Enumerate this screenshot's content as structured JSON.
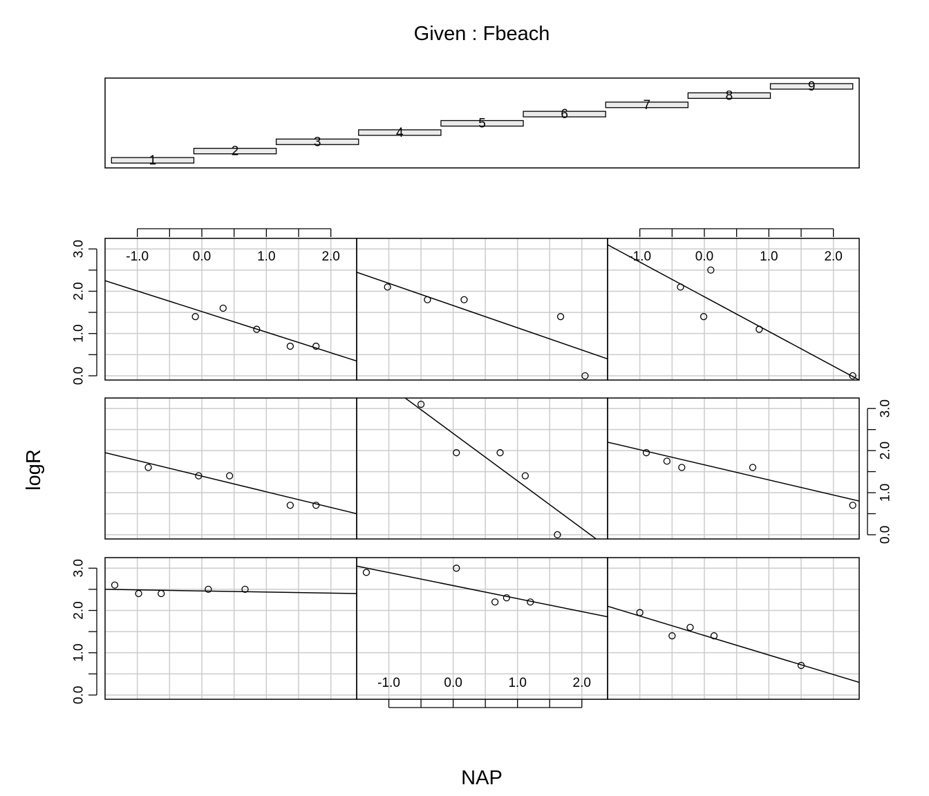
{
  "chart_data": {
    "type": "scatter",
    "title": "Given : Fbeach",
    "xlabel": "NAP",
    "ylabel": "logR",
    "xlim": [
      -1.5,
      2.4
    ],
    "ylim": [
      -0.1,
      3.25
    ],
    "x_ticks": [
      -1.0,
      -0.5,
      0.0,
      0.5,
      1.0,
      1.5,
      2.0
    ],
    "x_tick_labels": [
      "-1.0",
      "0.0",
      "1.0",
      "2.0"
    ],
    "x_tick_label_values": [
      -1.0,
      0.0,
      1.0,
      2.0
    ],
    "y_ticks": [
      0.0,
      0.5,
      1.0,
      1.5,
      2.0,
      2.5,
      3.0
    ],
    "y_tick_labels": [
      "0.0",
      "1.0",
      "2.0",
      "3.0"
    ],
    "y_tick_label_values": [
      0.0,
      1.0,
      2.0,
      3.0
    ],
    "grid": true,
    "given": {
      "variable": "Fbeach",
      "intervals": [
        {
          "label": "1",
          "range": [
            -1.45,
            -0.17
          ]
        },
        {
          "label": "2",
          "range": [
            -0.17,
            1.11
          ]
        },
        {
          "label": "3",
          "range": [
            1.11,
            2.39
          ]
        },
        {
          "label": "4",
          "range": [
            2.39,
            3.67
          ]
        },
        {
          "label": "5",
          "range": [
            3.67,
            4.95
          ]
        },
        {
          "label": "6",
          "range": [
            4.95,
            6.23
          ]
        },
        {
          "label": "7",
          "range": [
            6.23,
            7.51
          ]
        },
        {
          "label": "8",
          "range": [
            7.51,
            8.79
          ]
        },
        {
          "label": "9",
          "range": [
            8.79,
            10.07
          ]
        }
      ],
      "xlim": [
        -1.55,
        10.17
      ]
    },
    "panels": [
      {
        "given": "1",
        "points": [
          [
            -0.1,
            1.4
          ],
          [
            0.33,
            1.6
          ],
          [
            0.85,
            1.1
          ],
          [
            1.37,
            0.7
          ],
          [
            1.77,
            0.7
          ]
        ],
        "fit": [
          [
            -1.5,
            2.25
          ],
          [
            2.4,
            0.35
          ]
        ]
      },
      {
        "given": "2",
        "points": [
          [
            -1.02,
            2.1
          ],
          [
            -0.4,
            1.8
          ],
          [
            0.17,
            1.8
          ],
          [
            1.67,
            1.4
          ],
          [
            2.05,
            0.0
          ]
        ],
        "fit": [
          [
            -1.5,
            2.45
          ],
          [
            2.4,
            0.4
          ]
        ]
      },
      {
        "given": "3",
        "points": [
          [
            -0.37,
            2.1
          ],
          [
            0.1,
            2.5
          ],
          [
            -0.01,
            1.4
          ],
          [
            0.85,
            1.1
          ],
          [
            2.3,
            0.0
          ]
        ],
        "fit": [
          [
            -1.5,
            3.1
          ],
          [
            2.4,
            -0.1
          ]
        ]
      },
      {
        "given": "4",
        "points": [
          [
            -0.83,
            1.6
          ],
          [
            -0.05,
            1.4
          ],
          [
            0.43,
            1.4
          ],
          [
            1.37,
            0.7
          ],
          [
            1.77,
            0.7
          ]
        ],
        "fit": [
          [
            -1.5,
            1.95
          ],
          [
            2.4,
            0.5
          ]
        ]
      },
      {
        "given": "5",
        "points": [
          [
            -0.5,
            3.1
          ],
          [
            0.05,
            1.95
          ],
          [
            0.73,
            1.95
          ],
          [
            1.12,
            1.4
          ],
          [
            1.62,
            0.0
          ]
        ],
        "fit": [
          [
            -1.5,
            4.1
          ],
          [
            2.4,
            -0.3
          ]
        ]
      },
      {
        "given": "6",
        "points": [
          [
            -0.9,
            1.95
          ],
          [
            -0.58,
            1.75
          ],
          [
            -0.35,
            1.6
          ],
          [
            0.75,
            1.6
          ],
          [
            2.3,
            0.7
          ]
        ],
        "fit": [
          [
            -1.5,
            2.2
          ],
          [
            2.4,
            0.8
          ]
        ]
      },
      {
        "given": "7",
        "points": [
          [
            -1.35,
            2.6
          ],
          [
            -0.98,
            2.4
          ],
          [
            -0.63,
            2.4
          ],
          [
            0.1,
            2.5
          ],
          [
            0.67,
            2.5
          ]
        ],
        "fit": [
          [
            -1.5,
            2.5
          ],
          [
            2.4,
            2.4
          ]
        ]
      },
      {
        "given": "8",
        "points": [
          [
            -1.35,
            2.9
          ],
          [
            0.05,
            3.0
          ],
          [
            0.65,
            2.2
          ],
          [
            0.83,
            2.3
          ],
          [
            1.2,
            2.2
          ]
        ],
        "fit": [
          [
            -1.5,
            3.05
          ],
          [
            2.4,
            1.85
          ]
        ]
      },
      {
        "given": "9",
        "points": [
          [
            -1.0,
            1.95
          ],
          [
            -0.5,
            1.4
          ],
          [
            -0.22,
            1.6
          ],
          [
            0.15,
            1.4
          ],
          [
            1.5,
            0.7
          ]
        ],
        "fit": [
          [
            -1.5,
            2.1
          ],
          [
            2.4,
            0.3
          ]
        ]
      }
    ]
  }
}
